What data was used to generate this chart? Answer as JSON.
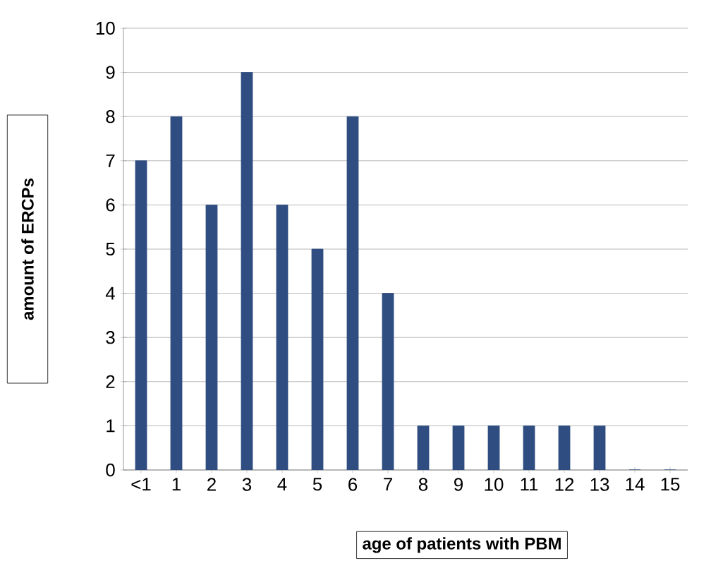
{
  "chart_data": {
    "type": "bar",
    "xlabel": "age of patients with PBM",
    "ylabel": "amount of ERCPs",
    "categories": [
      "<1",
      "1",
      "2",
      "3",
      "4",
      "5",
      "6",
      "7",
      "8",
      "9",
      "10",
      "11",
      "12",
      "13",
      "14",
      "15"
    ],
    "values": [
      7,
      8,
      6,
      9,
      6,
      5,
      8,
      4,
      1,
      1,
      1,
      1,
      1,
      1,
      0,
      0
    ],
    "color": "#2f4d80",
    "ylim": [
      0,
      10
    ],
    "yticks": [
      0,
      1,
      2,
      3,
      4,
      5,
      6,
      7,
      8,
      9,
      10
    ],
    "grid": "y"
  }
}
